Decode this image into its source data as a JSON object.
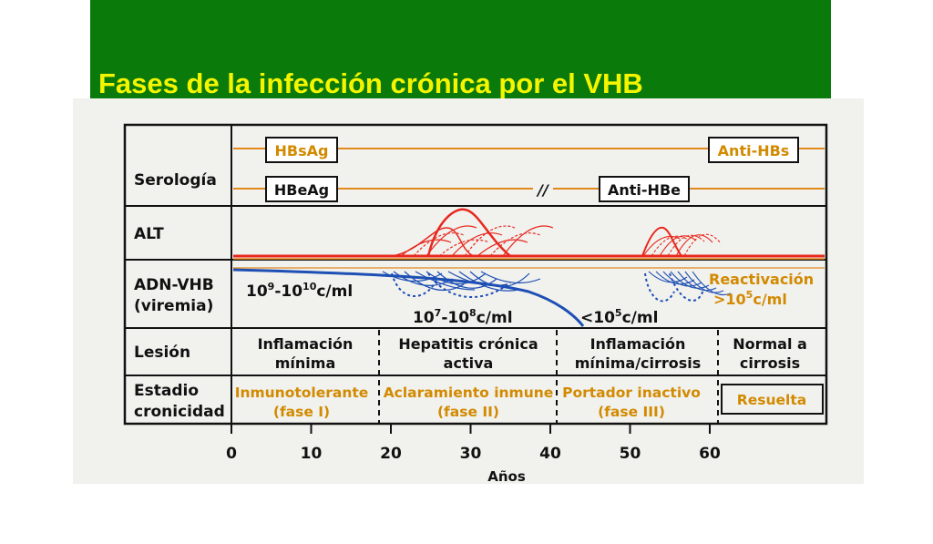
{
  "title": "Fases de la infección crónica por el VHB",
  "colors": {
    "title_bar": "#0a7a0a",
    "title_text": "#f5f500",
    "serology_line": "#e08a1e",
    "alt_curve": "#e8281e",
    "dna_curve": "#1e4fb4",
    "phase_text": "#d28a00"
  },
  "rows": {
    "serologia": "Serología",
    "alt": "ALT",
    "adn_line1": "ADN-VHB",
    "adn_line2": "(viremia)",
    "lesion": "Lesión",
    "estadio_line1": "Estadio",
    "estadio_line2": "cronicidad"
  },
  "serology": {
    "hbsag": "HBsAg",
    "hbeag": "HBeAg",
    "anti_hbs": "Anti-HBs",
    "anti_hbe": "Anti-HBe",
    "break_mark": "//"
  },
  "viremia": {
    "level_high_base": "10",
    "level_high_exp1": "9",
    "level_high_mid": "-10",
    "level_high_exp2": "10",
    "level_high_unit": "c/ml",
    "level_mid_base": "10",
    "level_mid_exp1": "7",
    "level_mid_mid": "-10",
    "level_mid_exp2": "8",
    "level_mid_unit": "c/ml",
    "level_low_prefix": "<10",
    "level_low_exp": "5",
    "level_low_unit": "c/ml",
    "reactivation_line1": "Reactivación",
    "reactivation_prefix": ">10",
    "reactivation_exp": "5",
    "reactivation_unit": "c/ml"
  },
  "lesion": [
    {
      "line1": "Inflamación",
      "line2": "mínima"
    },
    {
      "line1": "Hepatitis crónica",
      "line2": "activa"
    },
    {
      "line1": "Inflamación",
      "line2": "mínima/cirrosis"
    },
    {
      "line1": "Normal a",
      "line2": "cirrosis"
    }
  ],
  "phases": [
    {
      "line1": "Inmunotolerante",
      "line2": "(fase I)"
    },
    {
      "line1": "Aclaramiento inmune",
      "line2": "(fase II)"
    },
    {
      "line1": "Portador inactivo",
      "line2": "(fase III)"
    },
    {
      "line1": "Resuelta",
      "line2": ""
    }
  ],
  "axis": {
    "ticks": [
      0,
      10,
      20,
      30,
      40,
      50,
      60
    ],
    "label": "Años"
  }
}
